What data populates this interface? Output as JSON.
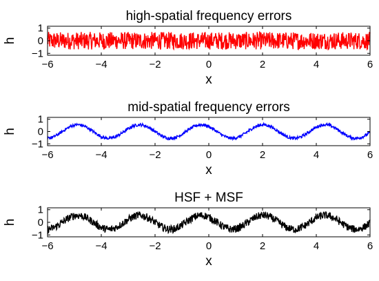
{
  "chart_data": [
    {
      "type": "line",
      "title": "high-spatial frequency errors",
      "xlabel": "x",
      "ylabel": "h",
      "xlim": [
        -6,
        6
      ],
      "ylim": [
        -1,
        1
      ],
      "xticks": [
        "−6",
        "−4",
        "−2",
        "0",
        "2",
        "4",
        "6"
      ],
      "yticks": [
        "−1",
        "0",
        "1"
      ],
      "grid": false,
      "color": "#ff0000",
      "series": [
        {
          "description": "random high-frequency noise, roughly uniform amplitude",
          "x_range": [
            -6,
            6
          ],
          "mean": 0,
          "amplitude": 0.7
        }
      ]
    },
    {
      "type": "line",
      "title": "mid-spatial frequency errors",
      "xlabel": "x",
      "ylabel": "h",
      "xlim": [
        -6,
        6
      ],
      "ylim": [
        -1,
        1
      ],
      "xticks": [
        "−6",
        "−4",
        "−2",
        "0",
        "2",
        "4",
        "6"
      ],
      "yticks": [
        "−1",
        "0",
        "1"
      ],
      "grid": false,
      "color": "#0000ff",
      "series": [
        {
          "description": "sinusoid with small noise",
          "x_range": [
            -6,
            6
          ],
          "amplitude": 0.55,
          "period": 2.3,
          "noise_amplitude": 0.12
        }
      ]
    },
    {
      "type": "line",
      "title": "HSF + MSF",
      "xlabel": "x",
      "ylabel": "h",
      "xlim": [
        -6,
        6
      ],
      "ylim": [
        -1,
        1
      ],
      "xticks": [
        "−6",
        "−4",
        "−2",
        "0",
        "2",
        "4",
        "6"
      ],
      "yticks": [
        "−1",
        "0",
        "1"
      ],
      "grid": false,
      "color": "#000000",
      "series": [
        {
          "description": "sum of high- and mid-spatial frequency errors",
          "x_range": [
            -6,
            6
          ],
          "amplitude": 0.55,
          "period": 2.3,
          "noise_amplitude": 0.3
        }
      ]
    }
  ]
}
